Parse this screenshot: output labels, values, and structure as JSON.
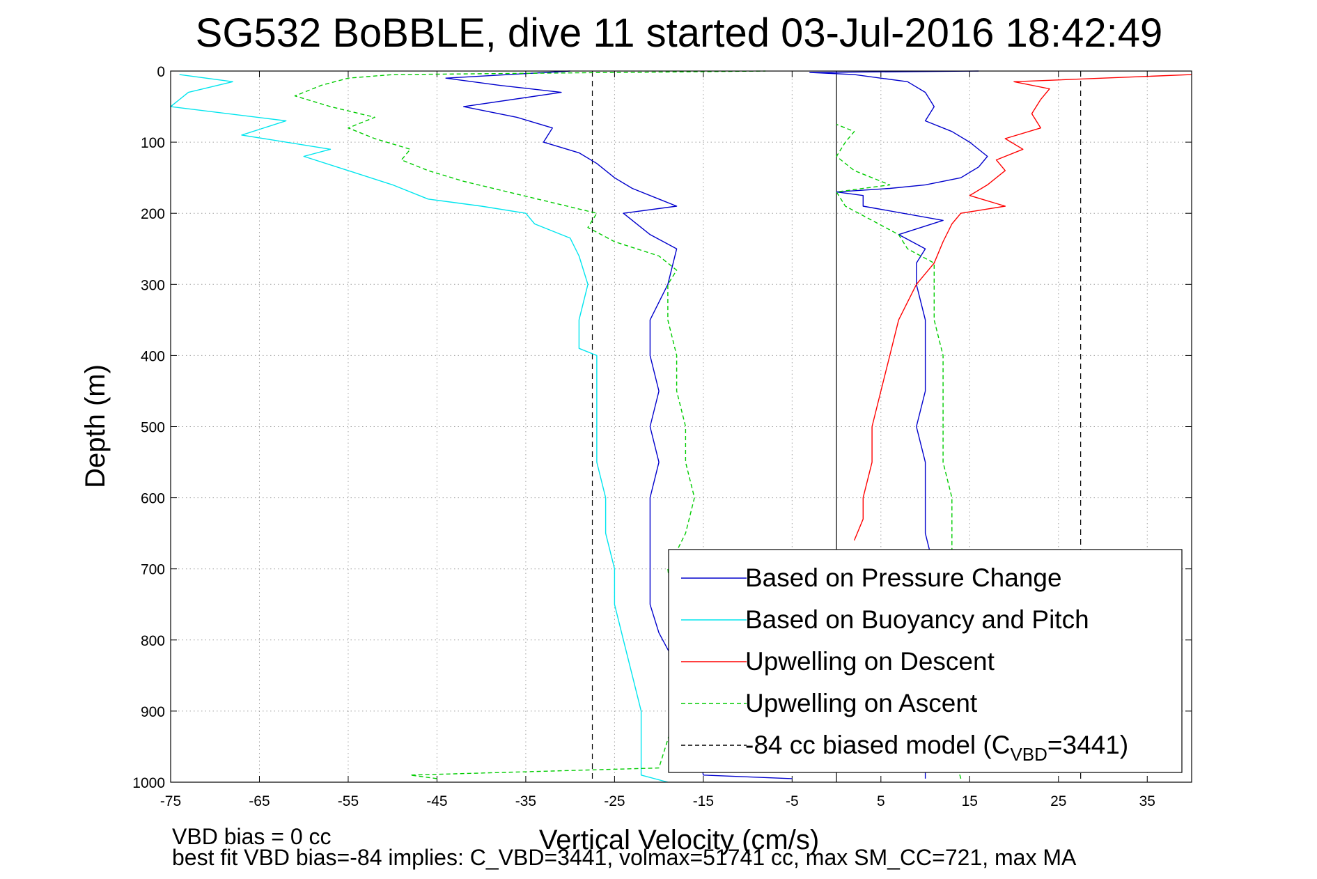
{
  "chart_data": {
    "type": "line",
    "title": "SG532 BoBBLE, dive 11 started 03-Jul-2016 18:42:49",
    "xlabel": "Vertical Velocity (cm/s)",
    "ylabel": "Depth (m)",
    "xlim": [
      -75,
      40
    ],
    "ylim": [
      0,
      1000
    ],
    "y_reversed": true,
    "grid": true,
    "x_ticks": [
      -75,
      -65,
      -55,
      -45,
      -35,
      -25,
      -15,
      -5,
      5,
      15,
      25,
      35
    ],
    "y_ticks": [
      0,
      100,
      200,
      300,
      400,
      500,
      600,
      700,
      800,
      900,
      1000
    ],
    "reference_lines": [
      {
        "x": -27.5,
        "style": "dashed",
        "color": "#000000"
      },
      {
        "x": 0,
        "style": "solid",
        "color": "#000000"
      },
      {
        "x": 27.5,
        "style": "dashed",
        "color": "#000000"
      }
    ],
    "legend": {
      "position": "lower-right",
      "entries": [
        {
          "label": "Based on Pressure Change",
          "color": "#0000cc",
          "style": "solid"
        },
        {
          "label": "Based on Buoyancy and Pitch",
          "color": "#00e5ee",
          "style": "solid"
        },
        {
          "label": "Upwelling on Descent",
          "color": "#ff0000",
          "style": "solid"
        },
        {
          "label": "Upwelling on Ascent",
          "color": "#00cc00",
          "style": "dashed"
        },
        {
          "label_prefix": "-84 cc biased model (C",
          "label_sub": "VBD",
          "label_suffix": "=3441)",
          "color": "#000000",
          "style": "dashed"
        }
      ]
    },
    "series": [
      {
        "key": "pressure_descent",
        "color": "#0000cc",
        "style": "solid",
        "points": [
          [
            -30,
            0
          ],
          [
            -44,
            10
          ],
          [
            -38,
            20
          ],
          [
            -31,
            30
          ],
          [
            -42,
            50
          ],
          [
            -36,
            65
          ],
          [
            -32,
            80
          ],
          [
            -33,
            100
          ],
          [
            -29,
            115
          ],
          [
            -27,
            130
          ],
          [
            -25,
            150
          ],
          [
            -23,
            165
          ],
          [
            -20,
            180
          ],
          [
            -18,
            190
          ],
          [
            -24,
            200
          ],
          [
            -21,
            230
          ],
          [
            -18,
            250
          ],
          [
            -19,
            300
          ],
          [
            -21,
            350
          ],
          [
            -21,
            400
          ],
          [
            -20,
            450
          ],
          [
            -21,
            500
          ],
          [
            -20,
            550
          ],
          [
            -21,
            600
          ],
          [
            -21,
            650
          ],
          [
            -21,
            700
          ],
          [
            -21,
            750
          ],
          [
            -20,
            790
          ],
          [
            -17,
            860
          ],
          [
            -16,
            930
          ],
          [
            -15,
            990
          ],
          [
            -5,
            995
          ]
        ]
      },
      {
        "key": "pressure_ascent",
        "color": "#0000cc",
        "style": "solid",
        "points": [
          [
            10,
            995
          ],
          [
            10,
            950
          ],
          [
            11,
            900
          ],
          [
            10,
            850
          ],
          [
            11,
            800
          ],
          [
            11,
            750
          ],
          [
            11,
            700
          ],
          [
            10,
            650
          ],
          [
            10,
            600
          ],
          [
            10,
            550
          ],
          [
            9,
            500
          ],
          [
            10,
            450
          ],
          [
            10,
            400
          ],
          [
            10,
            350
          ],
          [
            9,
            300
          ],
          [
            9,
            270
          ],
          [
            10,
            250
          ],
          [
            7,
            230
          ],
          [
            12,
            210
          ],
          [
            3,
            190
          ],
          [
            3,
            175
          ],
          [
            0,
            170
          ],
          [
            6,
            165
          ],
          [
            10,
            160
          ],
          [
            14,
            150
          ],
          [
            16,
            135
          ],
          [
            17,
            120
          ],
          [
            15,
            100
          ],
          [
            13,
            85
          ],
          [
            10,
            70
          ],
          [
            11,
            50
          ],
          [
            10,
            30
          ],
          [
            8,
            15
          ],
          [
            2,
            5
          ],
          [
            -3,
            2
          ],
          [
            16,
            0
          ]
        ]
      },
      {
        "key": "buoyancy_descent",
        "color": "#00e5ee",
        "style": "solid",
        "points": [
          [
            -74,
            5
          ],
          [
            -68,
            15
          ],
          [
            -73,
            30
          ],
          [
            -75,
            50
          ],
          [
            -62,
            70
          ],
          [
            -67,
            90
          ],
          [
            -57,
            110
          ],
          [
            -60,
            120
          ],
          [
            -55,
            140
          ],
          [
            -50,
            160
          ],
          [
            -46,
            180
          ],
          [
            -40,
            190
          ],
          [
            -35,
            200
          ],
          [
            -34,
            215
          ],
          [
            -30,
            235
          ],
          [
            -29,
            260
          ],
          [
            -28,
            300
          ],
          [
            -29,
            350
          ],
          [
            -29,
            380
          ],
          [
            -29,
            390
          ],
          [
            -27,
            400
          ],
          [
            -27,
            450
          ],
          [
            -27,
            500
          ],
          [
            -27,
            550
          ],
          [
            -26,
            600
          ],
          [
            -26,
            650
          ],
          [
            -25,
            700
          ],
          [
            -25,
            750
          ],
          [
            -24,
            800
          ],
          [
            -23,
            850
          ],
          [
            -22,
            900
          ],
          [
            -22,
            950
          ],
          [
            -22,
            990
          ],
          [
            -19,
            1000
          ]
        ]
      },
      {
        "key": "upwelling_descent",
        "color": "#ff0000",
        "style": "solid",
        "points": [
          [
            40,
            5
          ],
          [
            20,
            15
          ],
          [
            24,
            25
          ],
          [
            23,
            40
          ],
          [
            22,
            60
          ],
          [
            23,
            80
          ],
          [
            19,
            95
          ],
          [
            21,
            110
          ],
          [
            18,
            125
          ],
          [
            19,
            140
          ],
          [
            17,
            160
          ],
          [
            15,
            175
          ],
          [
            19,
            190
          ],
          [
            14,
            200
          ],
          [
            13,
            215
          ],
          [
            12,
            240
          ],
          [
            11,
            270
          ],
          [
            9,
            300
          ],
          [
            7,
            350
          ],
          [
            6,
            400
          ],
          [
            5,
            450
          ],
          [
            4,
            500
          ],
          [
            4,
            550
          ],
          [
            3,
            600
          ],
          [
            3,
            630
          ],
          [
            2,
            660
          ]
        ]
      },
      {
        "key": "upwelling_ascent",
        "color": "#00cc00",
        "style": "dashed",
        "points": [
          [
            14,
            995
          ],
          [
            13,
            950
          ],
          [
            13,
            900
          ],
          [
            12,
            850
          ],
          [
            12,
            800
          ],
          [
            12,
            750
          ],
          [
            13,
            700
          ],
          [
            13,
            650
          ],
          [
            13,
            600
          ],
          [
            12,
            550
          ],
          [
            12,
            500
          ],
          [
            12,
            450
          ],
          [
            12,
            400
          ],
          [
            11,
            350
          ],
          [
            11,
            300
          ],
          [
            11,
            270
          ],
          [
            8,
            250
          ],
          [
            7,
            230
          ],
          [
            4,
            210
          ],
          [
            1,
            190
          ],
          [
            0,
            170
          ],
          [
            6,
            160
          ],
          [
            2,
            140
          ],
          [
            0,
            120
          ],
          [
            1,
            100
          ],
          [
            2,
            85
          ],
          [
            0,
            75
          ]
        ]
      },
      {
        "key": "upwelling_ascent_deep",
        "color": "#00cc00",
        "style": "dashed",
        "points": [
          [
            -45,
            995
          ],
          [
            -48,
            990
          ],
          [
            -20,
            980
          ],
          [
            -18,
            900
          ],
          [
            -18,
            800
          ],
          [
            -19,
            700
          ],
          [
            -17,
            650
          ],
          [
            -16,
            600
          ],
          [
            -17,
            550
          ],
          [
            -17,
            500
          ],
          [
            -18,
            450
          ],
          [
            -18,
            400
          ],
          [
            -19,
            350
          ],
          [
            -19,
            300
          ],
          [
            -18,
            280
          ],
          [
            -20,
            260
          ],
          [
            -25,
            240
          ],
          [
            -28,
            220
          ],
          [
            -27,
            200
          ],
          [
            -32,
            185
          ],
          [
            -37,
            170
          ],
          [
            -42,
            155
          ],
          [
            -46,
            140
          ],
          [
            -49,
            125
          ],
          [
            -48,
            110
          ],
          [
            -52,
            95
          ],
          [
            -55,
            80
          ],
          [
            -52,
            65
          ],
          [
            -57,
            50
          ],
          [
            -61,
            35
          ],
          [
            -58,
            20
          ],
          [
            -55,
            10
          ],
          [
            -50,
            5
          ],
          [
            -8,
            0
          ]
        ]
      }
    ]
  },
  "footer": {
    "line1": "VBD bias = 0 cc",
    "line2": "best fit VBD bias=-84 implies: C_VBD=3441, volmax=51741 cc, max SM_CC=721, max MA"
  }
}
